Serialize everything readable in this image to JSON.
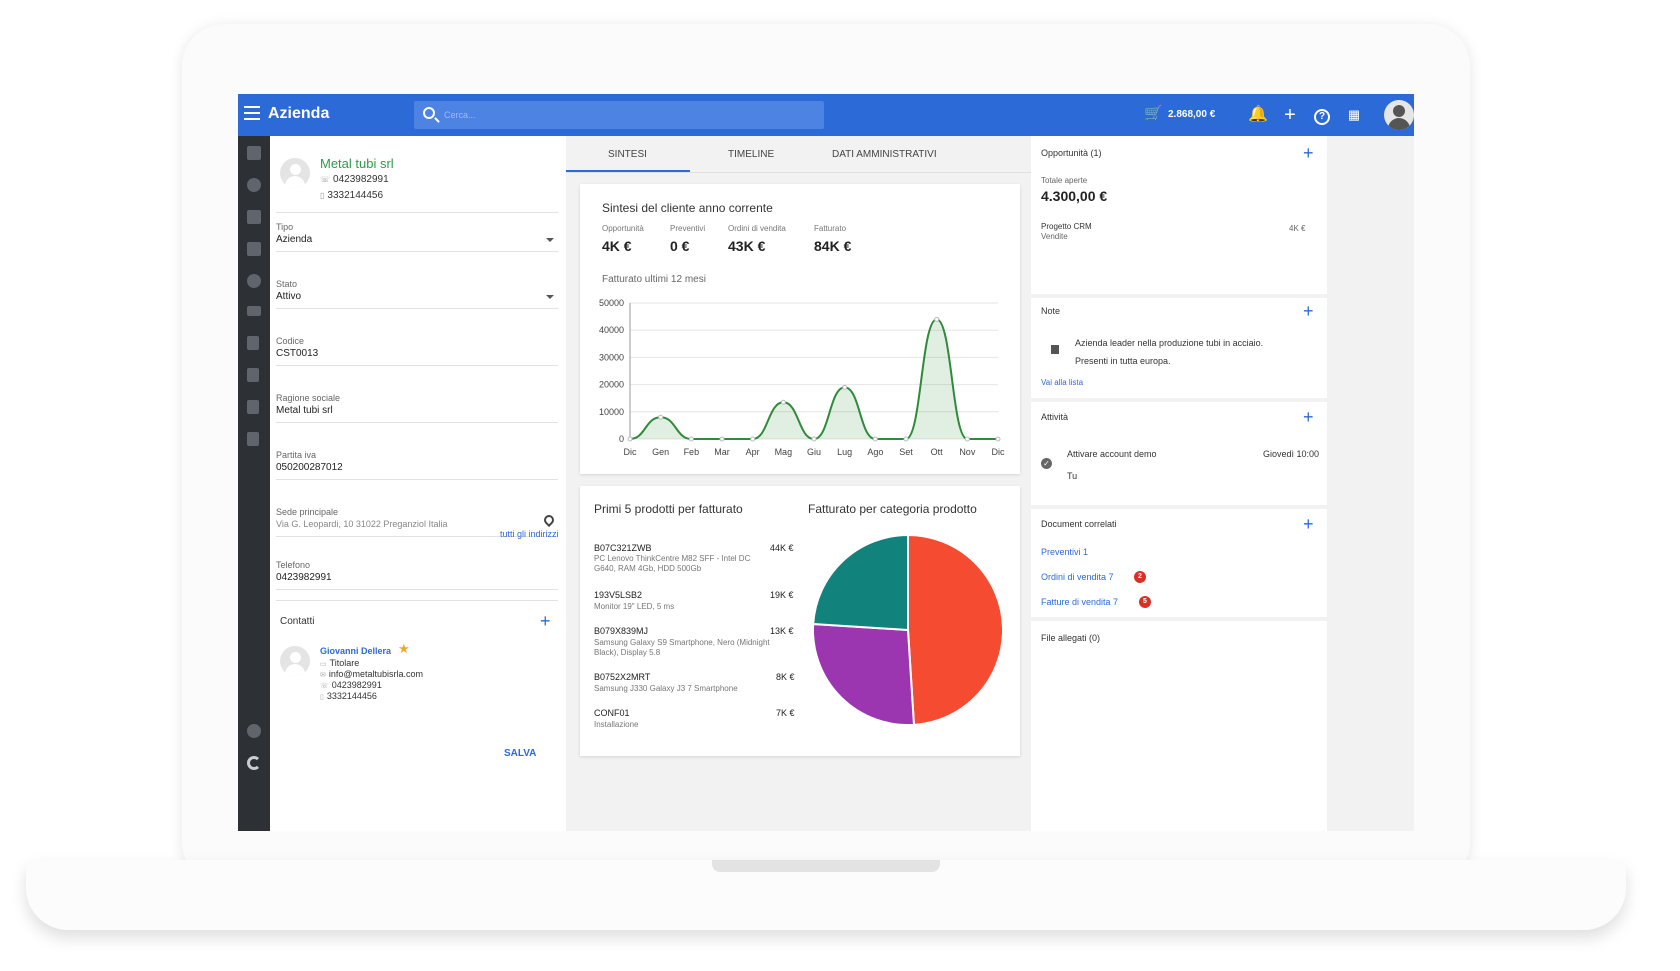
{
  "header": {
    "app_title": "Azienda",
    "search_placeholder": "Cerca...",
    "cart_total": "2.868,00 €",
    "icons": [
      "menu-icon",
      "search-icon",
      "cart-icon",
      "bell-icon",
      "plus-icon",
      "help-icon",
      "apps-icon",
      "avatar"
    ]
  },
  "sidebar": {
    "icons": [
      "home-icon",
      "target-icon",
      "contacts-icon",
      "company-icon",
      "euro-icon",
      "truck-icon",
      "document-icon",
      "document-icon",
      "document-icon",
      "document-icon",
      "gear-icon",
      "logo-icon"
    ]
  },
  "company": {
    "name": "Metal tubi srl",
    "phone": "0423982991",
    "mobile": "3332144456"
  },
  "fields": {
    "tipo_label": "Tipo",
    "tipo_value": "Azienda",
    "stato_label": "Stato",
    "stato_value": "Attivo",
    "codice_label": "Codice",
    "codice_value": "CST0013",
    "ragione_label": "Ragione sociale",
    "ragione_value": "Metal tubi srl",
    "piva_label": "Partita iva",
    "piva_value": "050200287012",
    "sede_label": "Sede principale",
    "sede_value": "Via G. Leopardi, 10 31022 Preganziol Italia",
    "all_addresses": "tutti gli indirizzi",
    "telefono_label": "Telefono",
    "telefono_value": "0423982991"
  },
  "contacts": {
    "title": "Contatti",
    "name": "Giovanni Dellera",
    "role": "Titolare",
    "email": "info@metaltubisrla.com",
    "phone": "0423982991",
    "mobile": "3332144456"
  },
  "save_label": "SALVA",
  "tabs": [
    "SINTESI",
    "TIMELINE",
    "DATI AMMINISTRATIVI"
  ],
  "summary": {
    "title": "Sintesi del cliente anno corrente",
    "kpis": [
      {
        "label": "Opportunità",
        "value": "4K €"
      },
      {
        "label": "Preventivi",
        "value": "0 €"
      },
      {
        "label": "Ordini di vendita",
        "value": "43K €"
      },
      {
        "label": "Fatturato",
        "value": "84K €"
      }
    ],
    "chart_title": "Fatturato ultimi 12 mesi"
  },
  "products": {
    "title": "Primi 5 prodotti per fatturato",
    "items": [
      {
        "code": "B07C321ZWB",
        "desc": "PC Lenovo ThinkCentre M82 SFF - Intel DC G640, RAM 4Gb, HDD 500Gb",
        "value": "44K €"
      },
      {
        "code": "193V5LSB2",
        "desc": "Monitor 19\" LED, 5 ms",
        "value": "19K €"
      },
      {
        "code": "B079X839MJ",
        "desc": "Samsung Galaxy S9 Smartphone, Nero (Midnight Black), Display 5.8",
        "value": "13K €"
      },
      {
        "code": "B0752X2MRT",
        "desc": "Samsung J330 Galaxy J3 7 Smartphone",
        "value": "8K €"
      },
      {
        "code": "CONF01",
        "desc": "Installazione",
        "value": "7K €"
      }
    ]
  },
  "category": {
    "title": "Fatturato per categoria prodotto"
  },
  "chart_data": [
    {
      "type": "area",
      "title": "Fatturato ultimi 12 mesi",
      "categories": [
        "Dic",
        "Gen",
        "Feb",
        "Mar",
        "Apr",
        "Mag",
        "Giu",
        "Lug",
        "Ago",
        "Set",
        "Ott",
        "Nov",
        "Dic"
      ],
      "values": [
        0,
        8000,
        0,
        0,
        0,
        13500,
        0,
        19000,
        0,
        0,
        44000,
        0,
        0
      ],
      "yticks": [
        0,
        10000,
        20000,
        30000,
        40000,
        50000
      ],
      "ylim": [
        0,
        50000
      ],
      "color": "#2e8b3a",
      "grid": true
    },
    {
      "type": "pie",
      "title": "Fatturato per categoria prodotto",
      "values": [
        49,
        27,
        24
      ],
      "colors": [
        "#f44b31",
        "#9c35b0",
        "#12827d"
      ]
    }
  ],
  "right": {
    "opportunities_title": "Opportunità (1)",
    "total_open_label": "Totale aperte",
    "total_open_value": "4.300,00 €",
    "opp_name": "Progetto CRM",
    "opp_sub": "Vendite",
    "opp_value": "4K €",
    "notes_title": "Note",
    "note_text_1": "Azienda leader nella produzione tubi in acciaio.",
    "note_text_2": "Presenti in tutta europa.",
    "notes_link": "Vai alla lista",
    "activity_title": "Attività",
    "activity_name": "Attivare account demo",
    "activity_when": "Giovedì 10:00",
    "activity_who": "Tu",
    "docs_title": "Document correlati",
    "docs": [
      {
        "label": "Preventivi 1",
        "badge": ""
      },
      {
        "label": "Ordini di vendita 7",
        "badge": "2"
      },
      {
        "label": "Fatture di vendita 7",
        "badge": "5"
      }
    ],
    "files_title": "File allegati (0)"
  }
}
